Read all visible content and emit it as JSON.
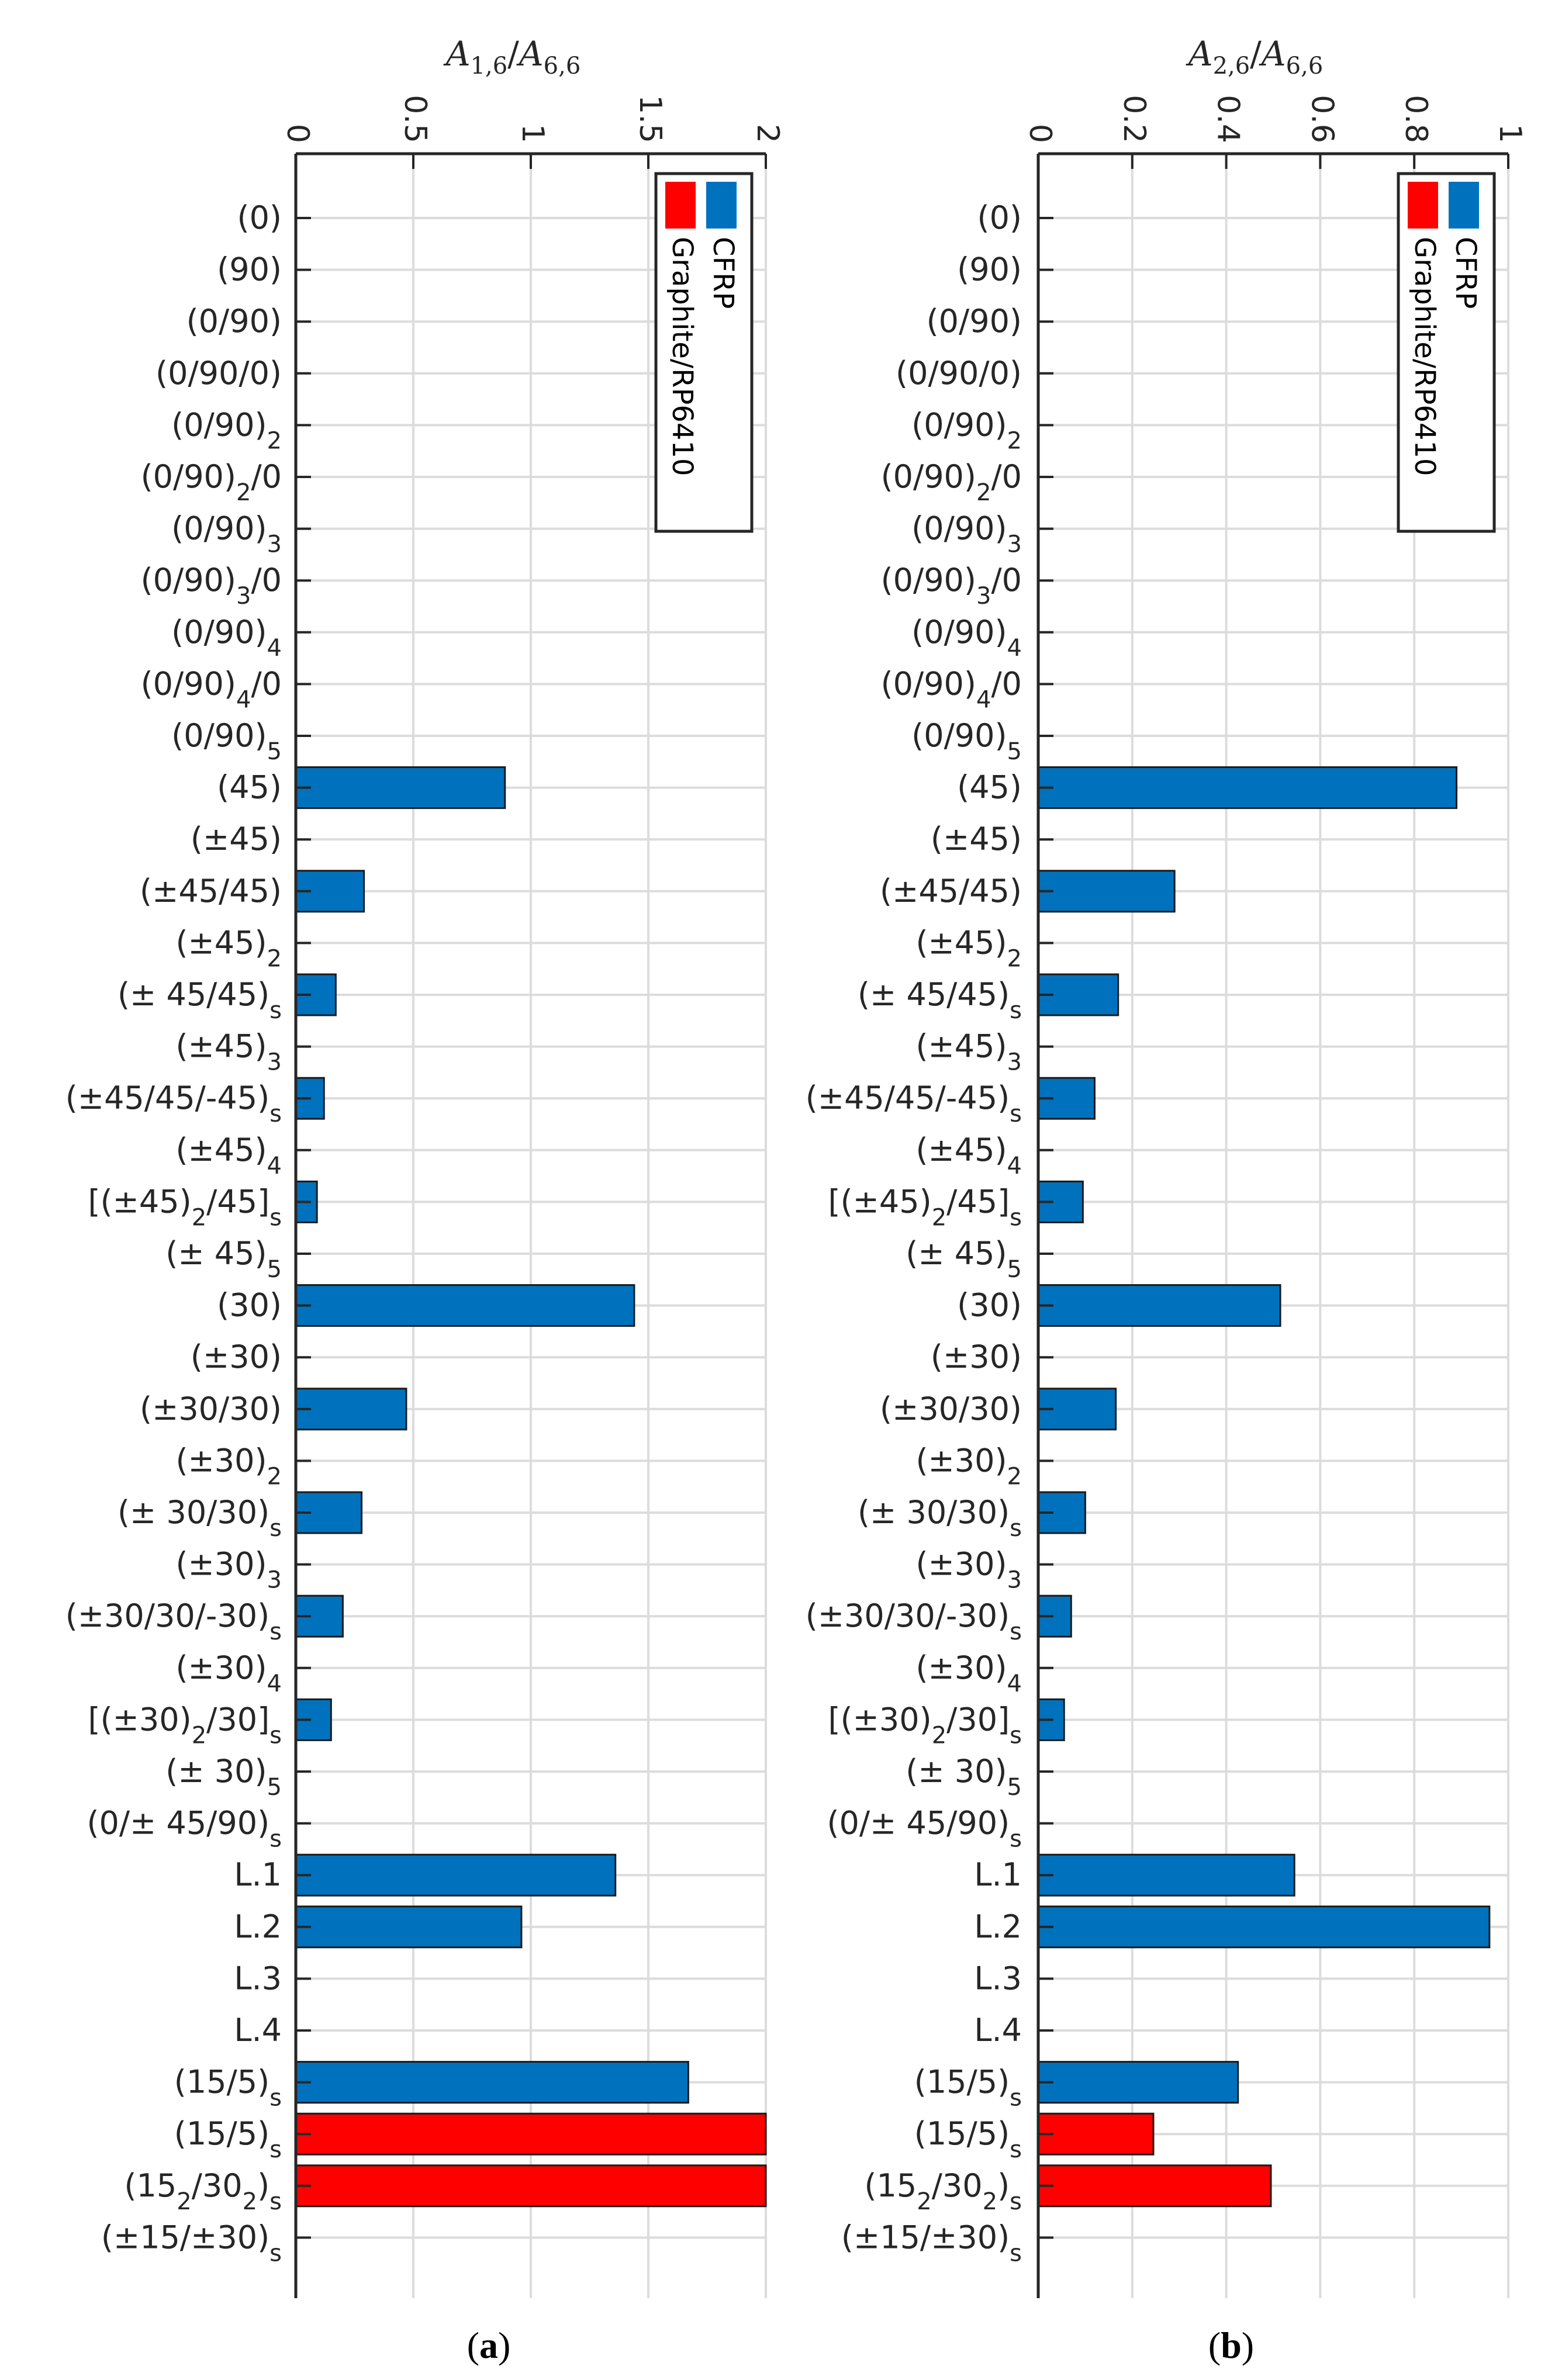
{
  "chart_data": [
    {
      "id": "a",
      "type": "bar",
      "orientation": "horizontal",
      "panel_label": "(a)",
      "xlabel_main": "A",
      "xlabel_sub1": "1,6",
      "xlabel_slash": "/",
      "xlabel_main2": "A",
      "xlabel_sub2": "6,6",
      "xlim": [
        0,
        2
      ],
      "ticks": [
        0,
        0.5,
        1,
        1.5,
        2
      ],
      "tick_labels": [
        "0",
        "0.5",
        "1",
        "1.5",
        "2"
      ],
      "grid": true,
      "legend": {
        "placement": "top-right",
        "entries": [
          {
            "name": "CFRP",
            "color": "#0072BD"
          },
          {
            "name": "Graphite/RP6410",
            "color": "#FF0000"
          }
        ]
      },
      "categories": [
        {
          "main": "(0)",
          "sub": "",
          "tail": ""
        },
        {
          "main": "(90)",
          "sub": "",
          "tail": ""
        },
        {
          "main": "(0/90)",
          "sub": "",
          "tail": ""
        },
        {
          "main": "(0/90/0)",
          "sub": "",
          "tail": ""
        },
        {
          "main": "(0/90)",
          "sub": "2",
          "tail": ""
        },
        {
          "main": "(0/90)",
          "sub": "2",
          "tail": "/0"
        },
        {
          "main": "(0/90)",
          "sub": "3",
          "tail": ""
        },
        {
          "main": "(0/90)",
          "sub": "3",
          "tail": "/0"
        },
        {
          "main": "(0/90)",
          "sub": "4",
          "tail": ""
        },
        {
          "main": "(0/90)",
          "sub": "4",
          "tail": "/0"
        },
        {
          "main": "(0/90)",
          "sub": "5",
          "tail": ""
        },
        {
          "main": "(45)",
          "sub": "",
          "tail": ""
        },
        {
          "main": "(±45)",
          "sub": "",
          "tail": ""
        },
        {
          "main": "(±45/45)",
          "sub": "",
          "tail": ""
        },
        {
          "main": "(±45)",
          "sub": "2",
          "tail": ""
        },
        {
          "main": "(± 45/45)",
          "sub": "s",
          "tail": ""
        },
        {
          "main": "(±45)",
          "sub": "3",
          "tail": ""
        },
        {
          "main": "(±45/45/-45)",
          "sub": "s",
          "tail": ""
        },
        {
          "main": "(±45)",
          "sub": "4",
          "tail": ""
        },
        {
          "main": "[(±45)",
          "sub": "2",
          "tail": "/45]",
          "sub2": "s"
        },
        {
          "main": "(± 45)",
          "sub": "5",
          "tail": ""
        },
        {
          "main": "(30)",
          "sub": "",
          "tail": ""
        },
        {
          "main": "(±30)",
          "sub": "",
          "tail": ""
        },
        {
          "main": "(±30/30)",
          "sub": "",
          "tail": ""
        },
        {
          "main": "(±30)",
          "sub": "2",
          "tail": ""
        },
        {
          "main": "(± 30/30)",
          "sub": "s",
          "tail": ""
        },
        {
          "main": "(±30)",
          "sub": "3",
          "tail": ""
        },
        {
          "main": "(±30/30/-30)",
          "sub": "s",
          "tail": ""
        },
        {
          "main": "(±30)",
          "sub": "4",
          "tail": ""
        },
        {
          "main": "[(±30)",
          "sub": "2",
          "tail": "/30]",
          "sub2": "s"
        },
        {
          "main": "(± 30)",
          "sub": "5",
          "tail": ""
        },
        {
          "main": "(0/± 45/90)",
          "sub": "s",
          "tail": ""
        },
        {
          "main": "L.1",
          "sub": "",
          "tail": ""
        },
        {
          "main": "L.2",
          "sub": "",
          "tail": ""
        },
        {
          "main": "L.3",
          "sub": "",
          "tail": ""
        },
        {
          "main": "L.4",
          "sub": "",
          "tail": ""
        },
        {
          "main": "(15/5)",
          "sub": "s",
          "tail": ""
        },
        {
          "main": "(15/5)",
          "sub": "s",
          "tail": ""
        },
        {
          "main": "(15",
          "sub": "2",
          "tail": "/30",
          "sub2": "2",
          "tail2": ")",
          "sub3": "s"
        },
        {
          "main": "(±15/±30)",
          "sub": "s",
          "tail": ""
        }
      ],
      "values": [
        0,
        0,
        0,
        0,
        0,
        0,
        0,
        0,
        0,
        0,
        0,
        0.89,
        0,
        0.29,
        0,
        0.17,
        0,
        0.12,
        0,
        0.09,
        0,
        1.44,
        0,
        0.47,
        0,
        0.28,
        0,
        0.2,
        0,
        0.15,
        0,
        0,
        1.36,
        0.96,
        0,
        0,
        1.67,
        2.0,
        2.0,
        0
      ],
      "series_of_bar": [
        "CFRP",
        "CFRP",
        "CFRP",
        "CFRP",
        "CFRP",
        "CFRP",
        "CFRP",
        "CFRP",
        "CFRP",
        "CFRP",
        "CFRP",
        "CFRP",
        "CFRP",
        "CFRP",
        "CFRP",
        "CFRP",
        "CFRP",
        "CFRP",
        "CFRP",
        "CFRP",
        "CFRP",
        "CFRP",
        "CFRP",
        "CFRP",
        "CFRP",
        "CFRP",
        "CFRP",
        "CFRP",
        "CFRP",
        "CFRP",
        "CFRP",
        "CFRP",
        "CFRP",
        "CFRP",
        "CFRP",
        "CFRP",
        "CFRP",
        "Graphite/RP6410",
        "Graphite/RP6410",
        "Graphite/RP6410"
      ]
    },
    {
      "id": "b",
      "type": "bar",
      "orientation": "horizontal",
      "panel_label": "(b)",
      "xlabel_main": "A",
      "xlabel_sub1": "2,6",
      "xlabel_slash": "/",
      "xlabel_main2": "A",
      "xlabel_sub2": "6,6",
      "xlim": [
        0,
        1
      ],
      "ticks": [
        0,
        0.2,
        0.4,
        0.6,
        0.8,
        1
      ],
      "tick_labels": [
        "0",
        "0.2",
        "0.4",
        "0.6",
        "0.8",
        "1"
      ],
      "grid": true,
      "legend": {
        "placement": "top-right",
        "entries": [
          {
            "name": "CFRP",
            "color": "#0072BD"
          },
          {
            "name": "Graphite/RP6410",
            "color": "#FF0000"
          }
        ]
      },
      "categories": "same-as-a",
      "values": [
        0,
        0,
        0,
        0,
        0,
        0,
        0,
        0,
        0,
        0,
        0,
        0.89,
        0,
        0.29,
        0,
        0.17,
        0,
        0.12,
        0,
        0.095,
        0,
        0.515,
        0,
        0.165,
        0,
        0.1,
        0,
        0.07,
        0,
        0.055,
        0,
        0,
        0.545,
        0.96,
        0,
        0,
        0.425,
        0.245,
        0.495,
        0
      ],
      "series_of_bar": "same-as-a"
    }
  ]
}
